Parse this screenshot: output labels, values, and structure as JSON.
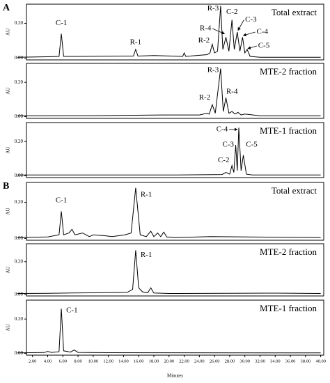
{
  "chart_data": [
    {
      "type": "line",
      "panel_label": "A",
      "title": "Total extract",
      "ylabel": "AU",
      "color": "#000000",
      "annotations": [
        "C-1",
        "R-1",
        "R-2",
        "R-3",
        "R-4",
        "C-2",
        "C-3",
        "C-4",
        "C-5"
      ],
      "x": [
        0,
        4,
        5.5,
        5.8,
        6.1,
        8,
        14,
        15.3,
        15.6,
        15.9,
        18,
        21.8,
        22,
        22.2,
        25,
        25.4,
        25.7,
        26.0,
        26.4,
        26.8,
        27.1,
        27.5,
        27.9,
        28.3,
        28.6,
        29.0,
        29.35,
        29.7,
        30.0,
        30.3,
        30.7,
        32,
        40
      ],
      "values": [
        0.005,
        0.008,
        0.01,
        0.14,
        0.01,
        0.01,
        0.012,
        0.012,
        0.05,
        0.012,
        0.015,
        0.01,
        0.03,
        0.01,
        0.02,
        0.03,
        0.08,
        0.03,
        0.04,
        0.3,
        0.05,
        0.12,
        0.04,
        0.22,
        0.05,
        0.15,
        0.04,
        0.12,
        0.03,
        0.05,
        0.01,
        0.005,
        0.005
      ],
      "xlim": [
        1.2,
        40.4
      ],
      "ylim": [
        -0.01,
        0.31
      ],
      "yticks": [
        {
          "value": 0,
          "label": "0.00"
        },
        {
          "value": 0.2,
          "label": "0.20"
        }
      ]
    },
    {
      "type": "line",
      "title": "MTE-2 fraction",
      "ylabel": "AU",
      "color": "#000000",
      "annotations": [
        "R-3",
        "R-2",
        "R-4"
      ],
      "x": [
        0,
        10,
        19,
        24,
        25.0,
        25.3,
        25.7,
        26.1,
        26.8,
        27.15,
        27.5,
        27.9,
        28.3,
        28.7,
        29.1,
        29.5,
        30,
        32,
        40
      ],
      "values": [
        0.005,
        0.006,
        0.01,
        0.01,
        0.02,
        0.015,
        0.07,
        0.02,
        0.28,
        0.03,
        0.11,
        0.02,
        0.03,
        0.015,
        0.025,
        0.01,
        0.015,
        0.005,
        0.005
      ],
      "xlim": [
        1.2,
        40.4
      ],
      "ylim": [
        -0.01,
        0.31
      ],
      "yticks": [
        {
          "value": 0,
          "label": "0.00"
        },
        {
          "value": 0.2,
          "label": "0.20"
        }
      ]
    },
    {
      "type": "line",
      "title": "MTE-1 fraction",
      "ylabel": "AU",
      "color": "#000000",
      "annotations": [
        "C-4",
        "C-3",
        "C-2",
        "C-5"
      ],
      "x": [
        0,
        20,
        27,
        27.5,
        28.0,
        28.3,
        28.55,
        28.8,
        29.0,
        29.2,
        29.5,
        29.8,
        30.2,
        31,
        40
      ],
      "values": [
        0.005,
        0.005,
        0.008,
        0.02,
        0.01,
        0.06,
        0.02,
        0.18,
        0.03,
        0.28,
        0.03,
        0.12,
        0.01,
        0.005,
        0.005
      ],
      "xlim": [
        1.2,
        40.4
      ],
      "ylim": [
        -0.01,
        0.31
      ],
      "yticks": [
        {
          "value": 0,
          "label": "0.00"
        },
        {
          "value": 0.2,
          "label": "0.20"
        }
      ]
    },
    {
      "type": "line",
      "panel_label": "B",
      "title": "Total extract",
      "ylabel": "AU",
      "color": "#000000",
      "annotations": [
        "C-1",
        "R-1"
      ],
      "x": [
        0,
        4,
        5.5,
        5.8,
        6.1,
        6.8,
        7.2,
        7.6,
        8.6,
        9.5,
        10.0,
        11.5,
        12.5,
        14.2,
        15.0,
        15.6,
        16.2,
        17.0,
        17.6,
        18.0,
        18.5,
        18.9,
        19.3,
        19.7,
        21,
        25.5,
        40
      ],
      "values": [
        0.005,
        0.008,
        0.02,
        0.15,
        0.02,
        0.03,
        0.05,
        0.02,
        0.03,
        0.01,
        0.02,
        0.015,
        0.01,
        0.02,
        0.03,
        0.28,
        0.02,
        0.01,
        0.04,
        0.01,
        0.03,
        0.01,
        0.035,
        0.008,
        0.005,
        0.01,
        0.005
      ],
      "xlim": [
        1.2,
        40.4
      ],
      "ylim": [
        -0.01,
        0.31
      ],
      "yticks": [
        {
          "value": 0,
          "label": "0.00"
        },
        {
          "value": 0.2,
          "label": "0.20"
        }
      ]
    },
    {
      "type": "line",
      "title": "MTE-2 fraction",
      "ylabel": "AU",
      "color": "#000000",
      "annotations": [
        "R-1"
      ],
      "x": [
        0,
        4,
        7,
        11,
        14.5,
        15.2,
        15.6,
        16.0,
        16.5,
        17.2,
        17.6,
        18.0,
        20,
        34.5,
        40
      ],
      "values": [
        0.005,
        0.006,
        0.008,
        0.01,
        0.012,
        0.03,
        0.27,
        0.04,
        0.015,
        0.01,
        0.04,
        0.008,
        0.005,
        0.007,
        0.005
      ],
      "xlim": [
        1.2,
        40.4
      ],
      "ylim": [
        -0.01,
        0.31
      ],
      "yticks": [
        {
          "value": 0,
          "label": "0.00"
        },
        {
          "value": 0.2,
          "label": "0.20"
        }
      ]
    },
    {
      "type": "line",
      "title": "MTE-1 fraction",
      "ylabel": "AU",
      "xlabel": "Minutes",
      "color": "#000000",
      "annotations": [
        "C-1"
      ],
      "x": [
        0,
        3.5,
        4.0,
        4.5,
        5.5,
        5.8,
        6.1,
        7.0,
        7.5,
        8.0,
        12,
        40
      ],
      "values": [
        0.003,
        0.005,
        0.012,
        0.006,
        0.01,
        0.26,
        0.015,
        0.008,
        0.02,
        0.006,
        0.004,
        0.003
      ],
      "xlim": [
        1.2,
        40.4
      ],
      "ylim": [
        -0.01,
        0.31
      ],
      "yticks": [
        {
          "value": 0,
          "label": "0.00"
        },
        {
          "value": 0.2,
          "label": "0.20"
        }
      ],
      "xticks": [
        {
          "value": 2,
          "label": "2.00"
        },
        {
          "value": 4,
          "label": "4.00"
        },
        {
          "value": 6,
          "label": "6.00"
        },
        {
          "value": 8,
          "label": "8.00"
        },
        {
          "value": 10,
          "label": "10.00"
        },
        {
          "value": 12,
          "label": "12.00"
        },
        {
          "value": 14,
          "label": "14.00"
        },
        {
          "value": 16,
          "label": "16.00"
        },
        {
          "value": 18,
          "label": "18.00"
        },
        {
          "value": 20,
          "label": "20.00"
        },
        {
          "value": 22,
          "label": "22.00"
        },
        {
          "value": 24,
          "label": "24.00"
        },
        {
          "value": 26,
          "label": "26.00"
        },
        {
          "value": 28,
          "label": "28.00"
        },
        {
          "value": 30,
          "label": "30.00"
        },
        {
          "value": 32,
          "label": "32.00"
        },
        {
          "value": 34,
          "label": "34.00"
        },
        {
          "value": 36,
          "label": "36.00"
        },
        {
          "value": 38,
          "label": "38.00"
        },
        {
          "value": 40,
          "label": "40.00"
        }
      ]
    }
  ]
}
